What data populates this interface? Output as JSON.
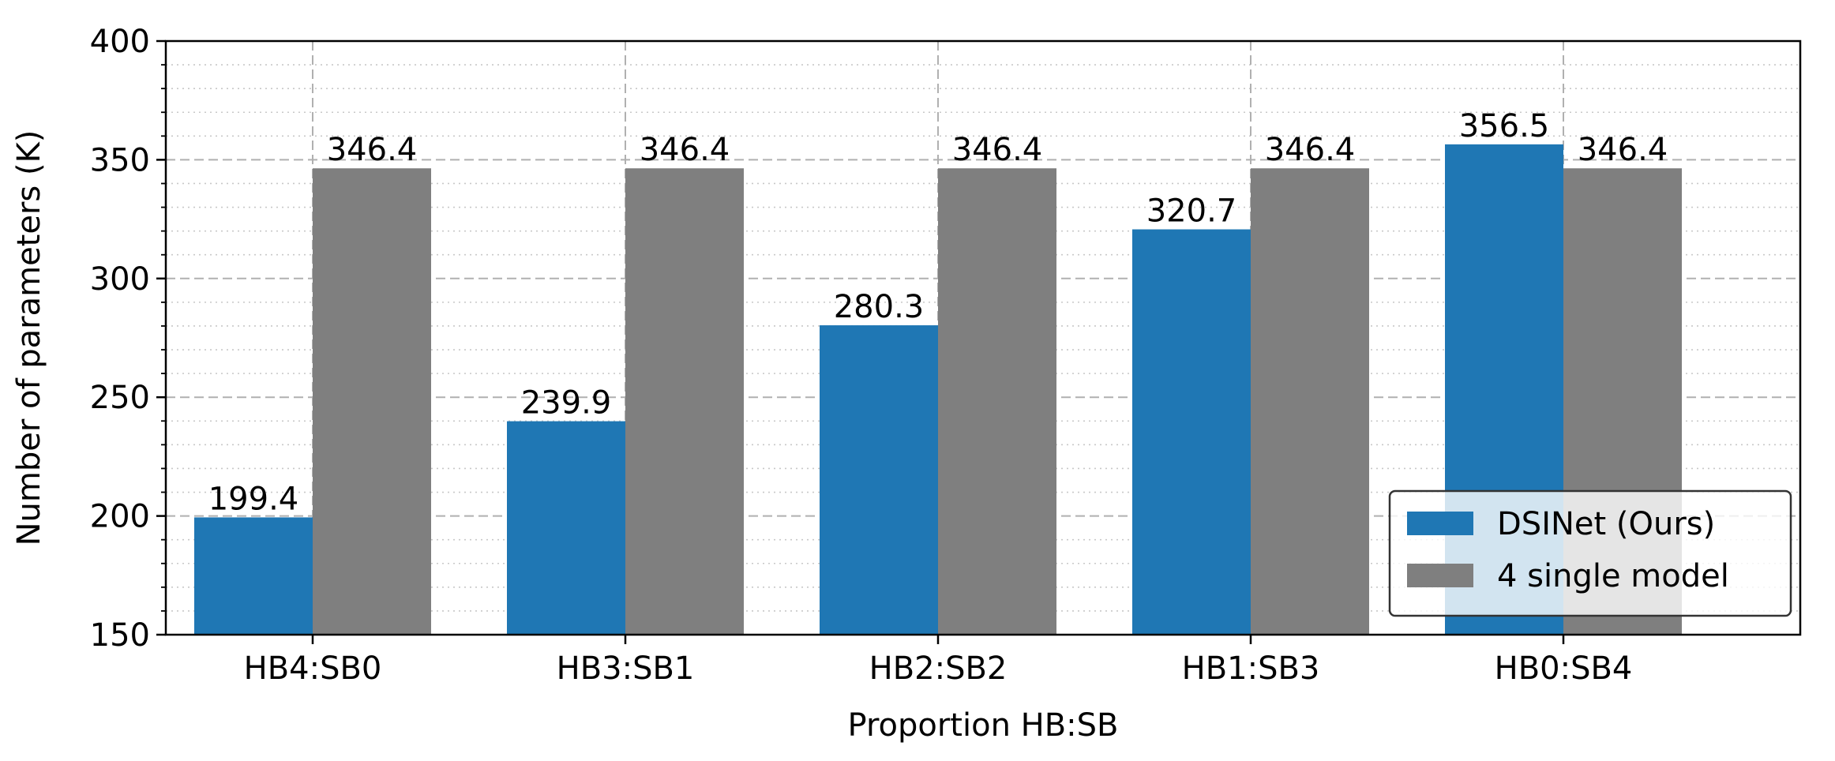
{
  "chart_data": {
    "type": "bar",
    "title": "",
    "xlabel": "Proportion HB:SB",
    "ylabel": "Number of parameters (K)",
    "categories": [
      "HB4:SB0",
      "HB3:SB1",
      "HB2:SB2",
      "HB1:SB3",
      "HB0:SB4"
    ],
    "series": [
      {
        "name": "DSINet (Ours)",
        "values": [
          199.4,
          239.9,
          280.3,
          320.7,
          356.5
        ],
        "labels": [
          "199.4",
          "239.9",
          "280.3",
          "320.7",
          "356.5"
        ],
        "color": "#1f77b4"
      },
      {
        "name": "4 single model",
        "values": [
          346.4,
          346.4,
          346.4,
          346.4,
          346.4
        ],
        "labels": [
          "346.4",
          "346.4",
          "346.4",
          "346.4",
          "346.4"
        ],
        "color": "#7f7f7f"
      }
    ],
    "ylim": [
      150,
      400
    ],
    "yticks": [
      150,
      200,
      250,
      300,
      350,
      400
    ],
    "ytick_labels": [
      "150",
      "200",
      "250",
      "300",
      "350",
      "400"
    ],
    "minor_ytick_step": 10,
    "grid": true,
    "legend_position": "lower-right"
  }
}
